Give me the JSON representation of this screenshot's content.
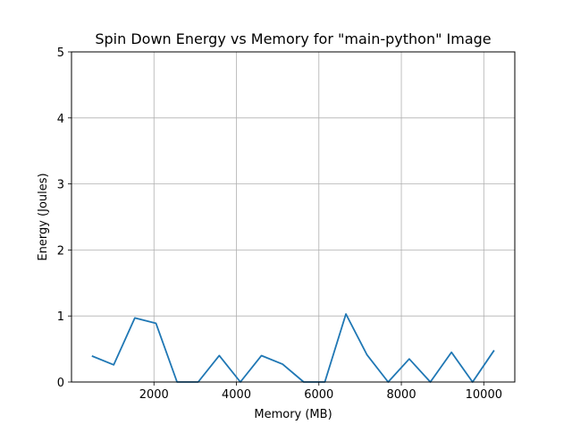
{
  "chart_data": {
    "type": "line",
    "title": "Spin Down Energy vs Memory for \"main-python\" Image",
    "xlabel": "Memory (MB)",
    "ylabel": "Energy (Joules)",
    "xlim": [
      0,
      10752
    ],
    "ylim": [
      0,
      5
    ],
    "xticks": [
      2000,
      4000,
      6000,
      8000,
      10000
    ],
    "xtick_labels": [
      "2000",
      "4000",
      "6000",
      "8000",
      "10000"
    ],
    "yticks": [
      0,
      1,
      2,
      3,
      4,
      5
    ],
    "ytick_labels": [
      "0",
      "1",
      "2",
      "3",
      "4",
      "5"
    ],
    "grid": true,
    "legend": false,
    "colors": {
      "line": "#1f77b4",
      "grid": "#b0b0b0",
      "axes": "#000000"
    },
    "series": [
      {
        "x": [
          512,
          1024,
          1536,
          2048,
          2560,
          3072,
          3584,
          4096,
          4608,
          5120,
          5632,
          6144,
          6656,
          7168,
          7680,
          8192,
          8704,
          9216,
          9728,
          10240
        ],
        "y": [
          0.39,
          0.26,
          0.97,
          0.89,
          0.0,
          0.0,
          0.4,
          0.0,
          0.4,
          0.27,
          0.0,
          0.0,
          1.03,
          0.41,
          0.0,
          0.35,
          0.0,
          0.45,
          0.0,
          0.47
        ]
      }
    ]
  }
}
